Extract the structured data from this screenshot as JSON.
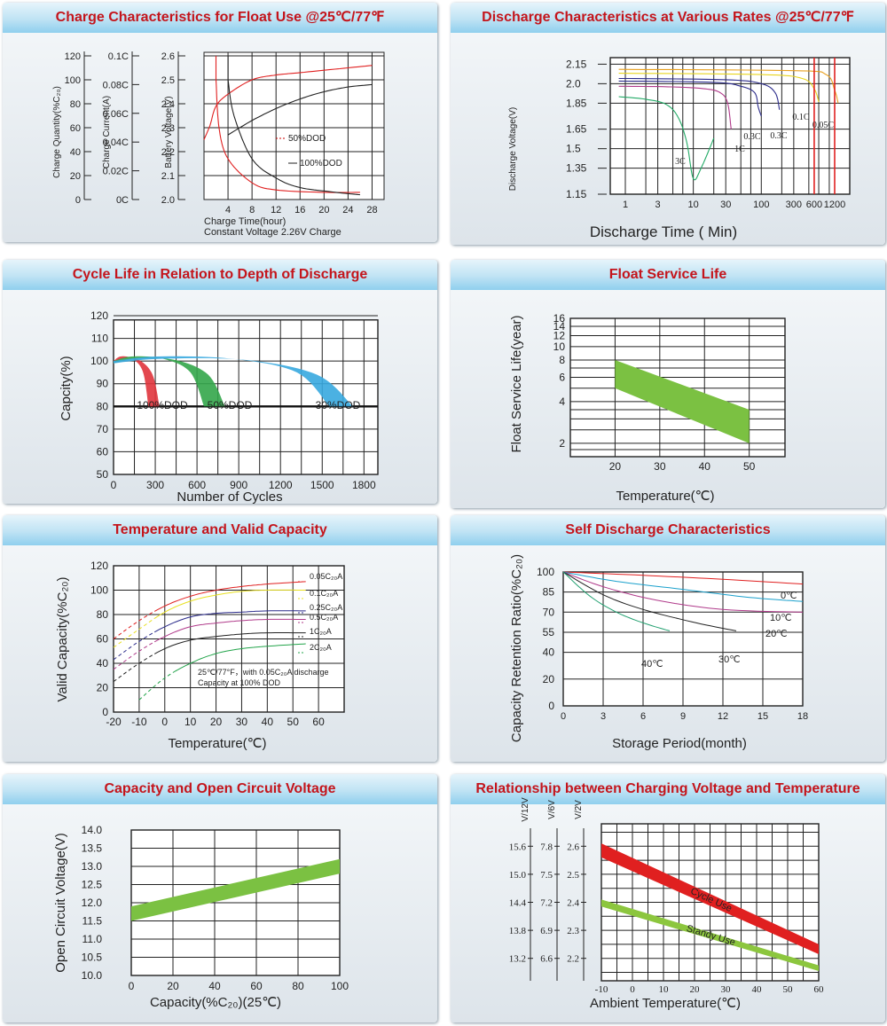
{
  "chart_data": [
    {
      "type": "line",
      "title": "Charge Characteristics for Float Use @25℃/77℉",
      "xlabel": "Charge Time(hour)",
      "note": "Constant Voltage 2.26V Charge",
      "xticks": [
        "4",
        "8",
        "12",
        "16",
        "20",
        "24",
        "28"
      ],
      "axes": [
        {
          "label": "Charge Quantity(%C₂₀)",
          "ticks": [
            "120",
            "100",
            "80",
            "60",
            "40",
            "20",
            "0"
          ]
        },
        {
          "label": "Charge Current(A)",
          "ticks": [
            "0.1C",
            "0.08C",
            "0.06C",
            "0.04C",
            "0.02C",
            "0C"
          ]
        },
        {
          "label": "Battery Voltage(V)",
          "ticks": [
            "2.6",
            "2.5",
            "2.4",
            "2.3",
            "2.2",
            "2.1",
            "2.0"
          ]
        }
      ],
      "series": [
        {
          "name": "50%DOD",
          "color": "#e02020",
          "voltage": [
            [
              0,
              2.25
            ],
            [
              1,
              2.31
            ],
            [
              2,
              2.39
            ],
            [
              4,
              2.44
            ],
            [
              8,
              2.5
            ],
            [
              12,
              2.52
            ],
            [
              16,
              2.53
            ],
            [
              24,
              2.55
            ],
            [
              28,
              2.56
            ]
          ],
          "current": [
            [
              2,
              2.5
            ],
            [
              2.5,
              2.3
            ],
            [
              4,
              2.17
            ],
            [
              8,
              2.07
            ],
            [
              12,
              2.04
            ],
            [
              20,
              2.03
            ],
            [
              26,
              2.03
            ]
          ]
        },
        {
          "name": "100%DOD",
          "color": "#222222",
          "voltage": [
            [
              4,
              2.27
            ],
            [
              8,
              2.33
            ],
            [
              12,
              2.38
            ],
            [
              16,
              2.42
            ],
            [
              20,
              2.45
            ],
            [
              24,
              2.47
            ],
            [
              28,
              2.48
            ]
          ],
          "current": [
            [
              4,
              2.5
            ],
            [
              5,
              2.35
            ],
            [
              8,
              2.17
            ],
            [
              12,
              2.09
            ],
            [
              16,
              2.05
            ],
            [
              22,
              2.03
            ],
            [
              26,
              2.02
            ]
          ]
        }
      ],
      "ylim": [
        2.0,
        2.6
      ],
      "xlim": [
        0,
        30
      ]
    },
    {
      "type": "line",
      "title": "Discharge Characteristics at Various Rates @25℃/77℉",
      "xlabel": "Discharge Time ( Min)",
      "ylabel": "Discharge Voltage(V)",
      "xscale": "log",
      "xticks": [
        "1",
        "3",
        "10",
        "30",
        "100",
        "300",
        "600",
        "1200"
      ],
      "yticks": [
        "2.15",
        "2.0",
        "1.85",
        "1.65",
        "1.5",
        "1.35",
        "1.15"
      ],
      "series": [
        {
          "name": "3C",
          "points": [
            [
              0.8,
              1.9
            ],
            [
              2,
              1.88
            ],
            [
              4,
              1.84
            ],
            [
              6,
              1.74
            ],
            [
              8,
              1.55
            ],
            [
              10,
              1.27
            ],
            [
              13,
              1.35
            ],
            [
              20,
              1.58
            ]
          ]
        },
        {
          "name": "1C",
          "points": [
            [
              0.8,
              1.98
            ],
            [
              5,
              1.975
            ],
            [
              15,
              1.96
            ],
            [
              25,
              1.93
            ],
            [
              32,
              1.85
            ],
            [
              36,
              1.65
            ]
          ]
        },
        {
          "name": "0.3C",
          "points": [
            [
              0.8,
              2.02
            ],
            [
              20,
              2.01
            ],
            [
              50,
              1.98
            ],
            [
              80,
              1.93
            ],
            [
              90,
              1.82
            ],
            [
              100,
              1.75
            ]
          ]
        },
        {
          "name": "0.3C",
          "points": [
            [
              0.8,
              2.04
            ],
            [
              30,
              2.03
            ],
            [
              100,
              2.0
            ],
            [
              160,
              1.93
            ],
            [
              185,
              1.8
            ]
          ]
        },
        {
          "name": "0.1C",
          "points": [
            [
              0.8,
              2.08
            ],
            [
              100,
              2.07
            ],
            [
              400,
              2.04
            ],
            [
              600,
              1.96
            ],
            [
              700,
              1.86
            ]
          ]
        },
        {
          "name": "0.05C",
          "points": [
            [
              0.8,
              2.11
            ],
            [
              300,
              2.1
            ],
            [
              900,
              2.07
            ],
            [
              1200,
              1.95
            ],
            [
              1350,
              1.85
            ]
          ]
        }
      ],
      "ylim": [
        1.15,
        2.2
      ]
    },
    {
      "type": "area",
      "title": "Cycle Life in Relation to Depth of Discharge",
      "xlabel": "Number of Cycles",
      "ylabel": "Capcity(%)",
      "xticks": [
        "0",
        "300",
        "600",
        "900",
        "1200",
        "1500",
        "1800"
      ],
      "yticks": [
        "120",
        "110",
        "100",
        "90",
        "80",
        "70",
        "60",
        "50"
      ],
      "series": [
        {
          "name": "100%DOD",
          "color": "#e0343c",
          "end_cycles": [
            250,
            330
          ]
        },
        {
          "name": "50%DOD",
          "color": "#33a64a",
          "end_cycles": [
            650,
            800
          ]
        },
        {
          "name": "30%DOD",
          "color": "#37a9df",
          "end_cycles": [
            1550,
            1720
          ]
        }
      ],
      "xlim": [
        0,
        1900
      ],
      "ylim": [
        50,
        120
      ]
    },
    {
      "type": "area",
      "title": "Float Service Life",
      "xlabel": "Temperature(℃)",
      "ylabel": "Float Service Life(year)",
      "xticks": [
        "20",
        "30",
        "40",
        "50"
      ],
      "yticks": [
        "16",
        "14",
        "12",
        "10",
        "8",
        "6",
        "4",
        "2"
      ],
      "band": {
        "x": [
          20,
          50
        ],
        "upper": [
          8,
          3.5
        ],
        "lower": [
          5,
          2
        ]
      },
      "xlim": [
        10,
        58
      ],
      "ylim": [
        1.6,
        16
      ],
      "yscale": "log"
    },
    {
      "type": "line",
      "title": "Temperature and Valid Capacity",
      "xlabel": "Temperature(℃)",
      "ylabel": "Valid Capacity(%C₂₀)",
      "xticks": [
        "-20",
        "-10",
        "0",
        "10",
        "20",
        "30",
        "40",
        "50",
        "60"
      ],
      "yticks": [
        "120",
        "100",
        "80",
        "60",
        "40",
        "20",
        "0"
      ],
      "annotation": [
        "25℃/77°F，with 0.05C₂₀A discharge",
        "Capacity at 100% DOD"
      ],
      "series": [
        {
          "name": "0.05C₂₀A",
          "color": "#e02020",
          "points": [
            [
              -20,
              60
            ],
            [
              -10,
              75
            ],
            [
              0,
              87
            ],
            [
              10,
              95
            ],
            [
              20,
              100
            ],
            [
              30,
              103
            ],
            [
              40,
              105
            ],
            [
              55,
              107
            ]
          ]
        },
        {
          "name": "0.1C₂₀A",
          "color": "#e8e020",
          "points": [
            [
              -20,
              53
            ],
            [
              -10,
              68
            ],
            [
              0,
              82
            ],
            [
              10,
              91
            ],
            [
              20,
              96
            ],
            [
              30,
              99
            ],
            [
              40,
              100
            ],
            [
              55,
              100
            ]
          ]
        },
        {
          "name": "0.25C₂₀A",
          "color": "#2a2a8a",
          "points": [
            [
              -20,
              43
            ],
            [
              -10,
              58
            ],
            [
              0,
              70
            ],
            [
              10,
              78
            ],
            [
              20,
              81
            ],
            [
              30,
              82
            ],
            [
              40,
              83
            ],
            [
              55,
              83
            ]
          ]
        },
        {
          "name": "0.5C₂₀A",
          "color": "#b03a8a",
          "points": [
            [
              -20,
              35
            ],
            [
              -10,
              50
            ],
            [
              0,
              62
            ],
            [
              10,
              70
            ],
            [
              20,
              73
            ],
            [
              30,
              75
            ],
            [
              40,
              76
            ],
            [
              55,
              76
            ]
          ]
        },
        {
          "name": "1C₂₀A",
          "color": "#222222",
          "points": [
            [
              -20,
              25
            ],
            [
              -10,
              40
            ],
            [
              0,
              52
            ],
            [
              10,
              59
            ],
            [
              20,
              62
            ],
            [
              30,
              64
            ],
            [
              40,
              65
            ],
            [
              55,
              65
            ]
          ]
        },
        {
          "name": "2C₂₀A",
          "color": "#22a44a",
          "points": [
            [
              -10,
              10
            ],
            [
              0,
              28
            ],
            [
              10,
              40
            ],
            [
              20,
              48
            ],
            [
              30,
              52
            ],
            [
              40,
              54
            ],
            [
              55,
              56
            ]
          ]
        }
      ],
      "xlim": [
        -20,
        60
      ],
      "ylim": [
        0,
        120
      ]
    },
    {
      "type": "line",
      "title": "Self Discharge Characteristics",
      "xlabel": "Storage Period(month)",
      "ylabel": "Capacity Retention Ratio(%C₂₀)",
      "xticks": [
        "0",
        "3",
        "6",
        "9",
        "12",
        "15",
        "18"
      ],
      "yticks": [
        "100",
        "85",
        "70",
        "55",
        "40",
        "20",
        "0"
      ],
      "series": [
        {
          "name": "0℃",
          "color": "#e02020",
          "points": [
            [
              0,
              100
            ],
            [
              6,
              97.5
            ],
            [
              12,
              94.5
            ],
            [
              18,
              91
            ]
          ]
        },
        {
          "name": "10℃",
          "color": "#1aa0cc",
          "points": [
            [
              0,
              100
            ],
            [
              4,
              93
            ],
            [
              9,
              87
            ],
            [
              14,
              81
            ],
            [
              18,
              78
            ]
          ]
        },
        {
          "name": "20℃",
          "color": "#b03a8a",
          "points": [
            [
              0,
              100
            ],
            [
              3,
              89
            ],
            [
              7,
              79
            ],
            [
              12,
              72
            ],
            [
              18,
              70
            ]
          ]
        },
        {
          "name": "30℃",
          "color": "#222222",
          "points": [
            [
              0,
              100
            ],
            [
              3,
              83
            ],
            [
              6,
              72
            ],
            [
              10,
              62
            ],
            [
              13,
              56
            ]
          ]
        },
        {
          "name": "40℃",
          "color": "#22a070",
          "points": [
            [
              0,
              100
            ],
            [
              2,
              82
            ],
            [
              4,
              70
            ],
            [
              6,
              62
            ],
            [
              8,
              56
            ]
          ]
        }
      ],
      "xlim": [
        0,
        18
      ],
      "ylim": [
        0,
        100
      ]
    },
    {
      "type": "area",
      "title": "Capacity and Open Circuit Voltage",
      "xlabel": "Capacity(%C₂₀)(25℃)",
      "ylabel": "Open Circuit Voltage(V)",
      "xticks": [
        "0",
        "20",
        "40",
        "60",
        "80",
        "100"
      ],
      "yticks": [
        "14.0",
        "13.5",
        "13.0",
        "12.5",
        "12.0",
        "11.5",
        "11.0",
        "10.5",
        "10.0"
      ],
      "band": {
        "x": [
          0,
          100
        ],
        "upper": [
          11.9,
          13.2
        ],
        "lower": [
          11.5,
          12.8
        ]
      },
      "xlim": [
        0,
        100
      ],
      "ylim": [
        10.0,
        14.0
      ]
    },
    {
      "type": "area",
      "title": "Relationship between Charging Voltage and Temperature",
      "xlabel": "Ambient Temperature(℃)",
      "axes": [
        {
          "label": "V/12V",
          "ticks": [
            "15.6",
            "15.0",
            "14.4",
            "13.8",
            "13.2"
          ]
        },
        {
          "label": "V/6V",
          "ticks": [
            "7.8",
            "7.5",
            "7.2",
            "6.9",
            "6.6"
          ]
        },
        {
          "label": "V/2V",
          "ticks": [
            "2.6",
            "2.5",
            "2.4",
            "2.3",
            "2.2"
          ]
        }
      ],
      "xticks": [
        "-10",
        "0",
        "10",
        "20",
        "30",
        "40",
        "50",
        "60"
      ],
      "series": [
        {
          "name": "Cycle Use",
          "color": "#e02020",
          "upper": [
            2.61,
            2.25
          ],
          "lower": [
            2.56,
            2.215
          ]
        },
        {
          "name": "Standy Use",
          "color": "#8cc63e",
          "upper": [
            2.41,
            2.175
          ],
          "lower": [
            2.385,
            2.155
          ]
        }
      ],
      "xlim": [
        -10,
        60
      ],
      "ylim": [
        2.12,
        2.68
      ]
    }
  ]
}
